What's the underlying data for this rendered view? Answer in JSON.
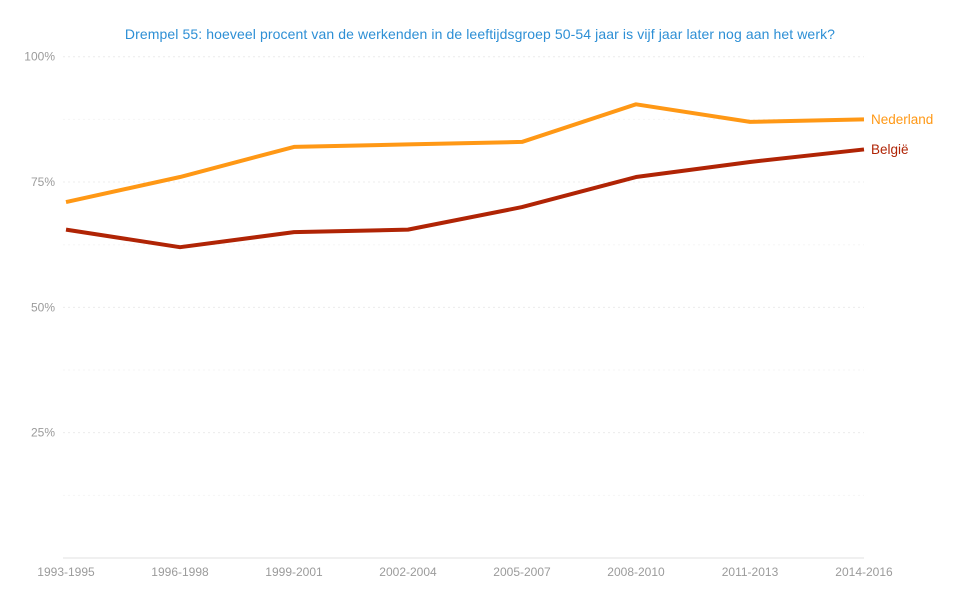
{
  "title": "Drempel 55: hoeveel procent van de werkenden in de leeftijdsgroep 50-54 jaar is vijf jaar later nog aan het werk?",
  "colors": {
    "title": "#2D8FD5",
    "axis_text": "#9B9B9B",
    "grid_major": "#ECECEC",
    "grid_minor": "#F5F5F5",
    "baseline": "#E0E0E0",
    "nederland": "#FF9815",
    "belgie": "#B02405"
  },
  "chart_data": {
    "type": "line",
    "title": "Drempel 55: hoeveel procent van de werkenden in de leeftijdsgroep 50-54 jaar is vijf jaar later nog aan het werk?",
    "categories": [
      "1993-1995",
      "1996-1998",
      "1999-2001",
      "2002-2004",
      "2005-2007",
      "2008-2010",
      "2011-2013",
      "2014-2016"
    ],
    "series": [
      {
        "name": "Nederland",
        "color": "#FF9815",
        "values": [
          71,
          76,
          82,
          82.5,
          83,
          90.5,
          87,
          87.5
        ]
      },
      {
        "name": "België",
        "color": "#B02405",
        "values": [
          65.5,
          62,
          65,
          65.5,
          70,
          76,
          79,
          81.5
        ]
      }
    ],
    "ylim": [
      0,
      100
    ],
    "y_ticks": [
      25,
      50,
      75,
      100
    ],
    "y_tick_suffix": "%",
    "minor_tick_step": 12.5,
    "grid": true,
    "legend_position": "end-of-line",
    "xlabel": "",
    "ylabel": ""
  }
}
